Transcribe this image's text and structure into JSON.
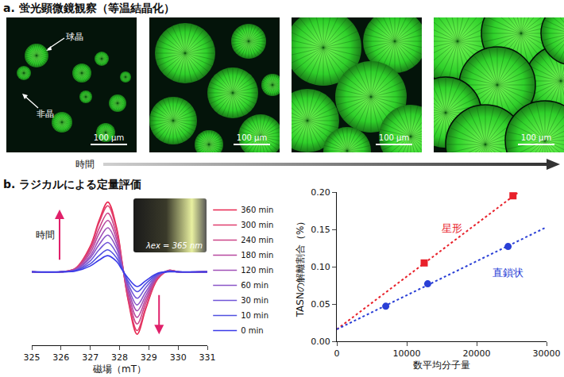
{
  "figure": {
    "panel_a": {
      "title": "a. 蛍光顕微鏡観察（等温結晶化）",
      "labels": [
        "球晶",
        "非晶"
      ],
      "scale_bar": "100 μm",
      "time_label": "時間"
    },
    "panel_b": {
      "title": "b. ラジカルによる定量評価"
    }
  },
  "chart_data": [
    {
      "type": "line",
      "x_label": "磁場（mT）",
      "x": [
        325,
        326,
        326.5,
        327,
        327.3,
        327.6,
        327.9,
        328.1,
        328.3,
        328.6,
        328.9,
        329.3,
        329.7,
        330,
        331
      ],
      "xlim": [
        325,
        331
      ],
      "xticks": [
        325,
        326,
        327,
        328,
        329,
        330,
        331
      ],
      "ylim": [
        -1,
        1
      ],
      "tick_labels": "x",
      "legend": "right",
      "annotations": [
        "時間"
      ],
      "inset_label": "λex = 365 nm",
      "series": [
        {
          "name": "360 min",
          "color": "#e8264f",
          "values": [
            0,
            0,
            0.05,
            0.35,
            0.7,
            0.95,
            0.6,
            0.1,
            -0.4,
            -0.85,
            -0.5,
            -0.1,
            0.02,
            0,
            0
          ]
        },
        {
          "name": "300 min",
          "color": "#e03f6e",
          "values": [
            0,
            0,
            0.05,
            0.33,
            0.67,
            0.9,
            0.57,
            0.09,
            -0.38,
            -0.8,
            -0.48,
            -0.09,
            0.02,
            0,
            0
          ]
        },
        {
          "name": "240 min",
          "color": "#cc4488",
          "values": [
            0,
            0,
            0.04,
            0.3,
            0.59,
            0.8,
            0.5,
            0.08,
            -0.34,
            -0.71,
            -0.42,
            -0.08,
            0.02,
            0,
            0
          ]
        },
        {
          "name": "180 min",
          "color": "#b84aa0",
          "values": [
            0,
            0,
            0.04,
            0.26,
            0.52,
            0.7,
            0.44,
            0.07,
            -0.29,
            -0.62,
            -0.37,
            -0.07,
            0.01,
            0,
            0
          ]
        },
        {
          "name": "120 min",
          "color": "#a050b8",
          "values": [
            0,
            0,
            0.03,
            0.22,
            0.44,
            0.6,
            0.38,
            0.06,
            -0.25,
            -0.53,
            -0.32,
            -0.06,
            0.01,
            0,
            0
          ]
        },
        {
          "name": "60 min",
          "color": "#8a55c8",
          "values": [
            0,
            0,
            0.03,
            0.19,
            0.37,
            0.5,
            0.32,
            0.05,
            -0.21,
            -0.45,
            -0.27,
            -0.05,
            0.01,
            0,
            0
          ]
        },
        {
          "name": "30 min",
          "color": "#7055d8",
          "values": [
            0,
            0,
            0.02,
            0.15,
            0.3,
            0.4,
            0.25,
            0.04,
            -0.17,
            -0.36,
            -0.21,
            -0.04,
            0.01,
            0,
            0
          ]
        },
        {
          "name": "10 min",
          "color": "#5050e0",
          "values": [
            0,
            0,
            0.02,
            0.11,
            0.22,
            0.3,
            0.19,
            0.03,
            -0.13,
            -0.27,
            -0.16,
            -0.03,
            0.01,
            0,
            0
          ]
        },
        {
          "name": "0 min",
          "color": "#3a3ae8",
          "values": [
            0,
            0,
            0.01,
            0.08,
            0.16,
            0.22,
            0.14,
            0.02,
            -0.09,
            -0.2,
            -0.12,
            -0.02,
            0,
            0,
            0
          ]
        }
      ]
    },
    {
      "type": "scatter",
      "x_label": "数平均分子量",
      "y_label": "TASNの解離割合（%）",
      "xlim": [
        0,
        30000
      ],
      "xticks": [
        0,
        10000,
        20000,
        30000
      ],
      "ylim": [
        0,
        0.2
      ],
      "yticks": [
        {
          "value": 0,
          "label": "0.00"
        },
        0.05,
        {
          "value": 0.1,
          "label": "0.10"
        },
        0.15,
        {
          "value": 0.2,
          "label": "0.20"
        }
      ],
      "grid": false,
      "series": [
        {
          "name": "星形",
          "color": "#e8202a",
          "marker": "square",
          "x": [
            12500,
            25200
          ],
          "values": [
            0.105,
            0.195
          ]
        },
        {
          "name": "直鎖状",
          "color": "#2a3fd6",
          "marker": "circle",
          "x": [
            7000,
            13000,
            24500
          ],
          "values": [
            0.047,
            0.077,
            0.127
          ]
        },
        {
          "type": "line",
          "line_style": "dotted",
          "color": "#e8202a",
          "x": [
            0,
            26000
          ],
          "values": [
            0.016,
            0.2
          ]
        },
        {
          "type": "line",
          "line_style": "dotted",
          "color": "#2a3fd6",
          "x": [
            0,
            30000
          ],
          "values": [
            0.016,
            0.153
          ]
        }
      ]
    }
  ]
}
